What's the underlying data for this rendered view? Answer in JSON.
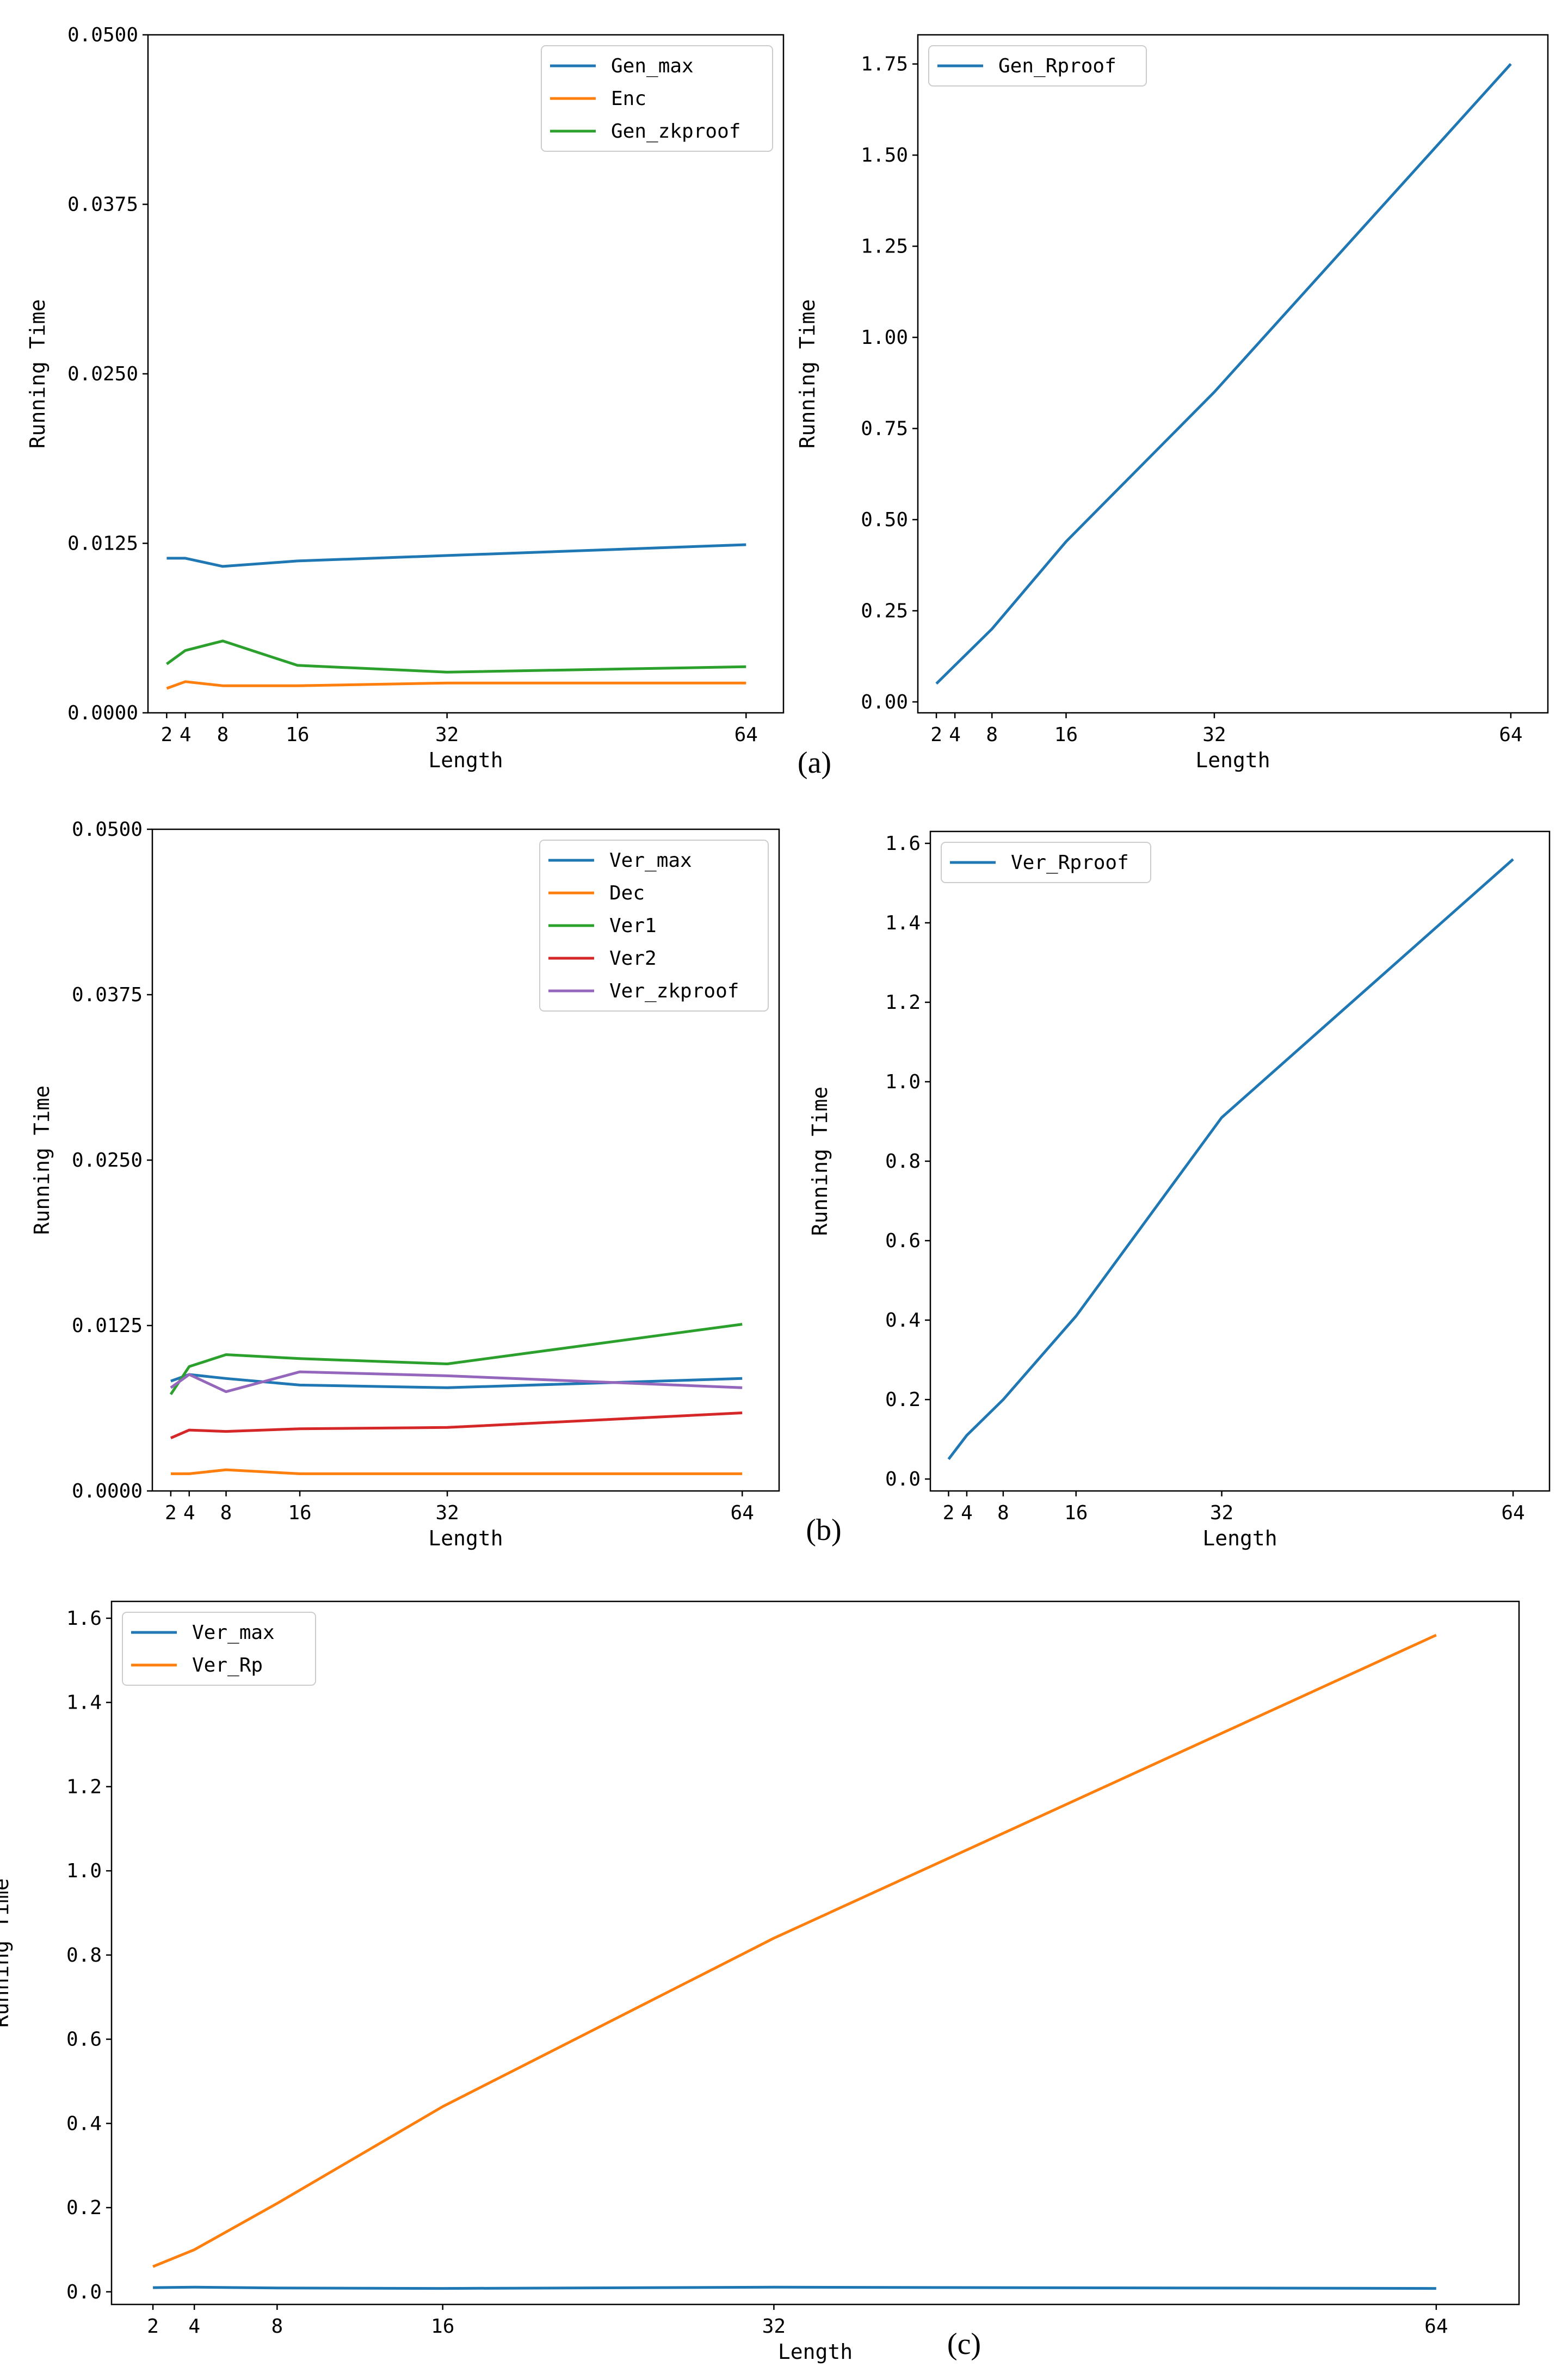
{
  "colors": {
    "blue": "#1f77b4",
    "orange": "#ff7f0e",
    "green": "#2ca02c",
    "red": "#d62728",
    "purple": "#9467bd"
  },
  "captions": [
    "(a)",
    "(b)",
    "(c)"
  ],
  "chart_data": [
    {
      "id": "a_left",
      "type": "line",
      "title": "",
      "xlabel": "Length",
      "ylabel": "Running Time",
      "x": [
        2,
        4,
        8,
        16,
        32,
        64
      ],
      "xticks": [
        2,
        4,
        8,
        16,
        32,
        64
      ],
      "xlim": [
        0,
        68
      ],
      "ylim": [
        0,
        0.05
      ],
      "yticks": [
        0.0,
        0.0125,
        0.025,
        0.0375,
        0.05
      ],
      "ytick_labels": [
        "0.0000",
        "0.0125",
        "0.0250",
        "0.0375",
        "0.0500"
      ],
      "legend": "top-right",
      "series": [
        {
          "name": "Gen_max",
          "color": "blue",
          "values": [
            0.0114,
            0.0114,
            0.0108,
            0.0112,
            0.0116,
            0.0124
          ]
        },
        {
          "name": "Enc",
          "color": "orange",
          "values": [
            0.0018,
            0.0023,
            0.002,
            0.002,
            0.0022,
            0.0022
          ]
        },
        {
          "name": "Gen_zkproof",
          "color": "green",
          "values": [
            0.0036,
            0.0046,
            0.0053,
            0.0035,
            0.003,
            0.0034
          ]
        }
      ]
    },
    {
      "id": "a_right",
      "type": "line",
      "title": "",
      "xlabel": "Length",
      "ylabel": "Running Time",
      "x": [
        2,
        4,
        8,
        16,
        32,
        64
      ],
      "xticks": [
        2,
        4,
        8,
        16,
        32,
        64
      ],
      "xlim": [
        0,
        68
      ],
      "ylim": [
        -0.03,
        1.83
      ],
      "yticks": [
        0.0,
        0.25,
        0.5,
        0.75,
        1.0,
        1.25,
        1.5,
        1.75
      ],
      "ytick_labels": [
        "0.00",
        "0.25",
        "0.50",
        "0.75",
        "1.00",
        "1.25",
        "1.50",
        "1.75"
      ],
      "legend": "top-left",
      "series": [
        {
          "name": "Gen_Rproof",
          "color": "blue",
          "values": [
            0.05,
            0.1,
            0.2,
            0.44,
            0.85,
            1.75
          ]
        }
      ]
    },
    {
      "id": "b_left",
      "type": "line",
      "title": "",
      "xlabel": "Length",
      "ylabel": "Running Time",
      "x": [
        2,
        4,
        8,
        16,
        32,
        64
      ],
      "xticks": [
        2,
        4,
        8,
        16,
        32,
        64
      ],
      "xlim": [
        0,
        68
      ],
      "ylim": [
        0,
        0.05
      ],
      "yticks": [
        0.0,
        0.0125,
        0.025,
        0.0375,
        0.05
      ],
      "ytick_labels": [
        "0.0000",
        "0.0125",
        "0.0250",
        "0.0375",
        "0.0500"
      ],
      "legend": "top-right",
      "series": [
        {
          "name": "Ver_max",
          "color": "blue",
          "values": [
            0.0083,
            0.0088,
            0.0085,
            0.008,
            0.0078,
            0.0085
          ]
        },
        {
          "name": "Dec",
          "color": "orange",
          "values": [
            0.0013,
            0.0013,
            0.0016,
            0.0013,
            0.0013,
            0.0013
          ]
        },
        {
          "name": "Ver1",
          "color": "green",
          "values": [
            0.0073,
            0.0094,
            0.0103,
            0.01,
            0.0096,
            0.0126
          ]
        },
        {
          "name": "Ver2",
          "color": "red",
          "values": [
            0.004,
            0.0046,
            0.0045,
            0.0047,
            0.0048,
            0.0059
          ]
        },
        {
          "name": "Ver_zkproof",
          "color": "purple",
          "values": [
            0.0078,
            0.0088,
            0.0075,
            0.009,
            0.0087,
            0.0078
          ]
        }
      ]
    },
    {
      "id": "b_right",
      "type": "line",
      "title": "",
      "xlabel": "Length",
      "ylabel": "Running Time",
      "x": [
        2,
        4,
        8,
        16,
        32,
        64
      ],
      "xticks": [
        2,
        4,
        8,
        16,
        32,
        64
      ],
      "xlim": [
        0,
        68
      ],
      "ylim": [
        -0.03,
        1.63
      ],
      "yticks": [
        0.0,
        0.2,
        0.4,
        0.6,
        0.8,
        1.0,
        1.2,
        1.4,
        1.6
      ],
      "ytick_labels": [
        "0.0",
        "0.2",
        "0.4",
        "0.6",
        "0.8",
        "1.0",
        "1.2",
        "1.4",
        "1.6"
      ],
      "legend": "top-left",
      "series": [
        {
          "name": "Ver_Rproof",
          "color": "blue",
          "values": [
            0.05,
            0.11,
            0.2,
            0.41,
            0.91,
            1.56
          ]
        }
      ]
    },
    {
      "id": "c",
      "type": "line",
      "title": "",
      "xlabel": "Length",
      "ylabel": "Running Time",
      "x": [
        2,
        4,
        8,
        16,
        32,
        64
      ],
      "xticks": [
        2,
        4,
        8,
        16,
        32,
        64
      ],
      "xlim": [
        0,
        68
      ],
      "ylim": [
        -0.03,
        1.64
      ],
      "yticks": [
        0.0,
        0.2,
        0.4,
        0.6,
        0.8,
        1.0,
        1.2,
        1.4,
        1.6
      ],
      "ytick_labels": [
        "0.0",
        "0.2",
        "0.4",
        "0.6",
        "0.8",
        "1.0",
        "1.2",
        "1.4",
        "1.6"
      ],
      "legend": "top-left",
      "series": [
        {
          "name": "Ver_max",
          "color": "blue",
          "values": [
            0.01,
            0.011,
            0.009,
            0.008,
            0.011,
            0.008
          ]
        },
        {
          "name": "Ver_Rp",
          "color": "orange",
          "values": [
            0.06,
            0.1,
            0.21,
            0.44,
            0.84,
            1.56
          ]
        }
      ]
    }
  ]
}
